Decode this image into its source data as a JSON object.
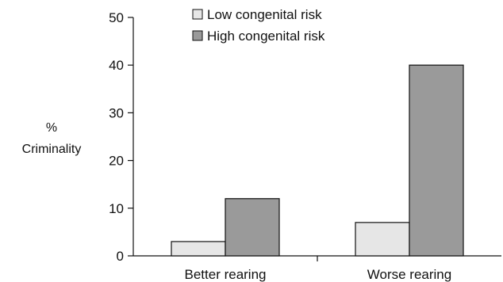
{
  "chart_data": {
    "type": "bar",
    "categories": [
      "Better rearing",
      "Worse rearing"
    ],
    "series": [
      {
        "name": "Low congenital risk",
        "values": [
          3,
          7
        ],
        "color": "#e6e6e6"
      },
      {
        "name": "High congenital risk",
        "values": [
          12,
          40
        ],
        "color": "#9a9a9a"
      }
    ],
    "ylabel": [
      "%",
      "Criminality"
    ],
    "ylim": [
      0,
      50
    ],
    "yticks": [
      0,
      10,
      20,
      30,
      40,
      50
    ],
    "grid": false,
    "legend_position": "top-center"
  }
}
